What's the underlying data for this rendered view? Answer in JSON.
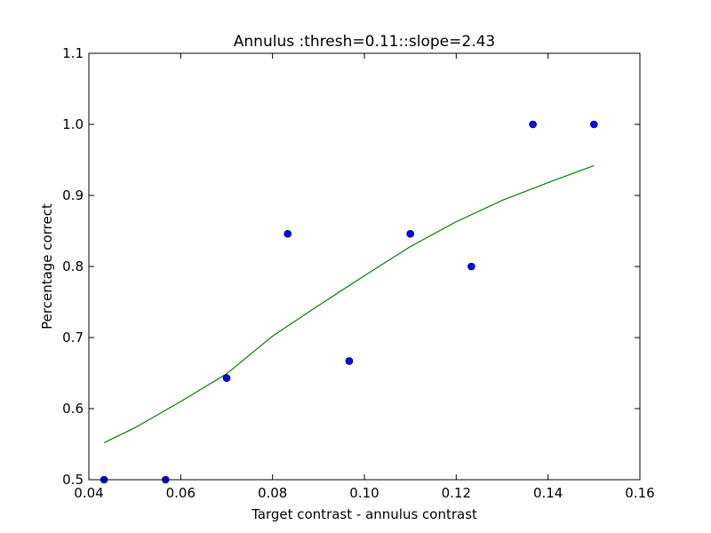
{
  "chart_data": {
    "type": "scatter",
    "title": "Annulus :thresh=0.11::slope=2.43",
    "xlabel": "Target contrast - annulus contrast",
    "ylabel": "Percentage correct",
    "xlim": [
      0.04,
      0.16
    ],
    "ylim": [
      0.5,
      1.1
    ],
    "xticks": [
      0.04,
      0.06,
      0.08,
      0.1,
      0.12,
      0.14,
      0.16
    ],
    "xtick_labels": [
      "0.04",
      "0.06",
      "0.08",
      "0.10",
      "0.12",
      "0.14",
      "0.16"
    ],
    "yticks": [
      0.5,
      0.6,
      0.7,
      0.8,
      0.9,
      1.0,
      1.1
    ],
    "ytick_labels": [
      "0.5",
      "0.6",
      "0.7",
      "0.8",
      "0.9",
      "1.0",
      "1.1"
    ],
    "grid": false,
    "legend": "none",
    "series": [
      {
        "kind": "scatter",
        "color": "#0000ff",
        "points": [
          {
            "x": 0.0433,
            "y": 0.5
          },
          {
            "x": 0.0567,
            "y": 0.5
          },
          {
            "x": 0.07,
            "y": 0.643
          },
          {
            "x": 0.0833,
            "y": 0.846
          },
          {
            "x": 0.0967,
            "y": 0.667
          },
          {
            "x": 0.11,
            "y": 0.846
          },
          {
            "x": 0.1233,
            "y": 0.8
          },
          {
            "x": 0.1367,
            "y": 1.0
          },
          {
            "x": 0.15,
            "y": 1.0
          }
        ]
      },
      {
        "kind": "line",
        "color": "#008000",
        "points": [
          {
            "x": 0.0433,
            "y": 0.552
          },
          {
            "x": 0.05,
            "y": 0.573
          },
          {
            "x": 0.06,
            "y": 0.61
          },
          {
            "x": 0.07,
            "y": 0.649
          },
          {
            "x": 0.08,
            "y": 0.702
          },
          {
            "x": 0.09,
            "y": 0.745
          },
          {
            "x": 0.1,
            "y": 0.787
          },
          {
            "x": 0.11,
            "y": 0.828
          },
          {
            "x": 0.12,
            "y": 0.863
          },
          {
            "x": 0.13,
            "y": 0.893
          },
          {
            "x": 0.14,
            "y": 0.918
          },
          {
            "x": 0.15,
            "y": 0.942
          }
        ]
      }
    ]
  }
}
